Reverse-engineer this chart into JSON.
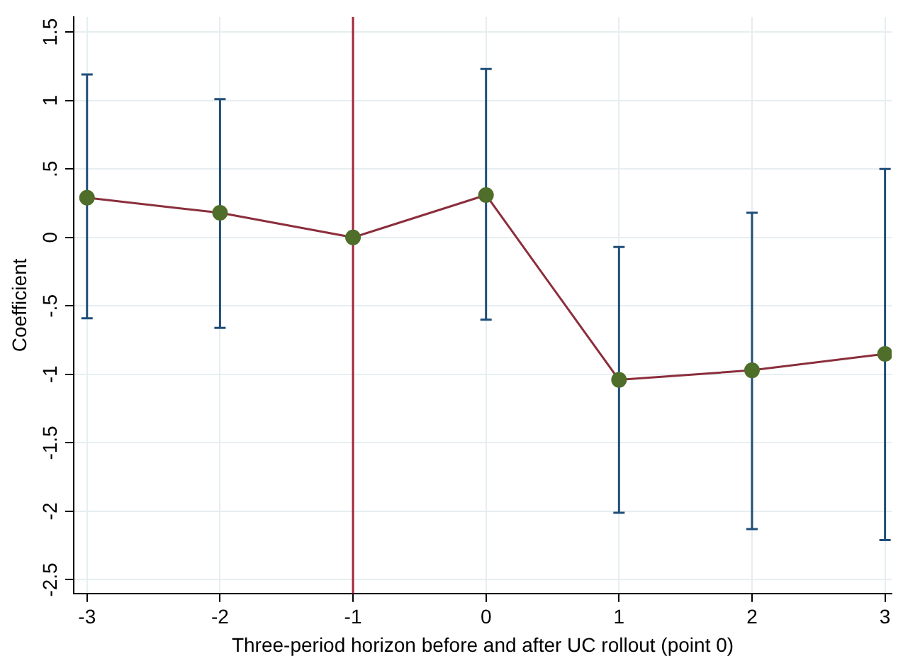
{
  "chart_data": {
    "type": "line",
    "xlabel": "Three-period horizon before and after UC rollout (point 0)",
    "ylabel": "Coefficient",
    "x": [
      -3,
      -2,
      -1,
      0,
      1,
      2,
      3
    ],
    "series": [
      {
        "color": "#8b2e3c",
        "colors": [
          "#4e6e2a",
          "#4e6e2a",
          "#4e6e2a",
          "#4e6e2a",
          "#4e6e2a",
          "#4e6e2a",
          "#4e6e2a"
        ],
        "values": [
          0.29,
          0.18,
          0,
          0.31,
          -1.04,
          -0.97,
          -0.85
        ],
        "errors": [
          [
            -0.59,
            1.19
          ],
          [
            -0.66,
            1.01
          ],
          null,
          [
            -0.6,
            1.23
          ],
          [
            -2.01,
            -0.07
          ],
          [
            -2.13,
            0.18
          ],
          [
            -2.21,
            0.5
          ]
        ]
      }
    ],
    "xlim": [
      -3.1,
      3.05
    ],
    "xticks": [
      -3,
      -2,
      -1,
      0,
      1,
      2,
      3
    ],
    "ylim": [
      -2.6,
      1.61
    ],
    "yticks": [
      {
        "value": -2.5,
        "label": "-2.5"
      },
      {
        "value": -2,
        "label": "-2"
      },
      {
        "value": -1.5,
        "label": "-1.5"
      },
      {
        "value": -1,
        "label": "-1"
      },
      {
        "value": -0.5,
        "label": "-.5"
      },
      {
        "value": 0,
        "label": "0"
      },
      {
        "value": 0.5,
        "label": ".5"
      },
      {
        "value": 1,
        "label": "1"
      },
      {
        "value": 1.5,
        "label": "1.5"
      }
    ],
    "ref_lines": [
      {
        "axis": "x",
        "value": -1,
        "color": "#a3283c"
      }
    ],
    "grid": true,
    "marker": "circle",
    "legend": false
  }
}
